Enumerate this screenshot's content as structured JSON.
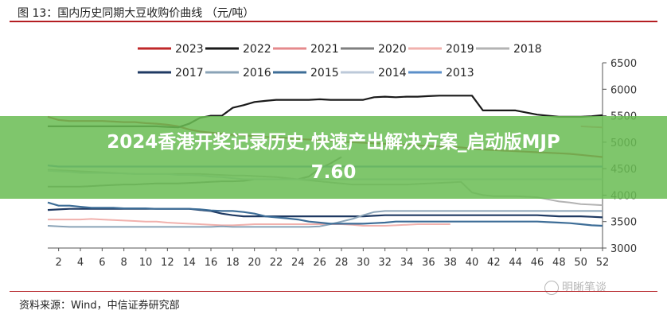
{
  "figure_title": "图 13：国内历史同期大豆收购价曲线 （元/吨）",
  "source_text": "资料来源：Wind，中信证券研究部",
  "watermark_text": "明晰笔谈",
  "banner": {
    "line1": "2024香港开奖记录历史,快速产出解决方案_启动版MJP",
    "line2": "7.60",
    "color": "#6abd54"
  },
  "chart_data": {
    "type": "line",
    "title": "",
    "xlabel": "",
    "ylabel": "",
    "x": [
      1,
      2,
      3,
      4,
      5,
      6,
      7,
      8,
      9,
      10,
      11,
      12,
      13,
      14,
      15,
      16,
      17,
      18,
      19,
      20,
      21,
      22,
      23,
      24,
      25,
      26,
      27,
      28,
      29,
      30,
      31,
      32,
      33,
      34,
      35,
      36,
      37,
      38,
      39,
      40,
      41,
      42,
      43,
      44,
      45,
      46,
      47,
      48,
      49,
      50,
      51,
      52
    ],
    "xticks": [
      2,
      4,
      6,
      8,
      10,
      12,
      14,
      16,
      18,
      20,
      22,
      24,
      26,
      28,
      30,
      32,
      34,
      36,
      38,
      40,
      42,
      44,
      46,
      48,
      50,
      52
    ],
    "xlim": [
      1,
      52
    ],
    "ylim": [
      3000,
      6500
    ],
    "yticks": [
      3000,
      3500,
      4000,
      4500,
      5000,
      5500,
      6000,
      6500
    ],
    "y_axis_side": "right",
    "grid": false,
    "legend_position": "top",
    "series": [
      {
        "name": "2023",
        "color": "#c0282a",
        "width": 2.2,
        "values": [
          5480,
          5420,
          5400,
          5400,
          5400,
          5400,
          5390,
          5380,
          5380,
          5360,
          5350,
          5330,
          5300,
          5240,
          5200,
          5180,
          5160,
          5140,
          5130,
          5110,
          5100,
          5090,
          5080,
          5060,
          5050,
          5040,
          5030,
          5010,
          5000,
          4990,
          4980,
          4970,
          4960,
          4950,
          4940,
          4930,
          4920,
          4910,
          4900,
          4880,
          4860,
          4850,
          4840,
          4830,
          4820,
          4810,
          4800,
          4790,
          4780,
          4760,
          4740,
          4720
        ]
      },
      {
        "name": "2022",
        "color": "#1a1a1a",
        "width": 2.2,
        "values": [
          5300,
          5300,
          5300,
          5300,
          5300,
          5300,
          5300,
          5300,
          5300,
          5300,
          5300,
          5290,
          5280,
          5350,
          5460,
          5500,
          5500,
          5650,
          5700,
          5760,
          5780,
          5800,
          5800,
          5800,
          5800,
          5810,
          5800,
          5800,
          5800,
          5800,
          5850,
          5860,
          5850,
          5860,
          5860,
          5870,
          5880,
          5880,
          5880,
          5880,
          5600,
          5600,
          5600,
          5600,
          5560,
          5520,
          5500,
          5480,
          5480,
          5480,
          5490,
          5510
        ]
      },
      {
        "name": "2021",
        "color": "#e58a8c",
        "width": 2.0,
        "values": [
          null,
          null,
          null,
          null,
          null,
          null,
          null,
          null,
          null,
          null,
          null,
          null,
          null,
          null,
          null,
          null,
          null,
          null,
          null,
          null,
          null,
          null,
          null,
          null,
          null,
          null,
          null,
          null,
          null,
          null,
          null,
          null,
          null,
          null,
          null,
          null,
          null,
          null,
          null,
          null,
          null,
          null,
          null,
          null,
          null,
          null,
          null,
          null,
          null,
          5300,
          5290,
          5280
        ]
      },
      {
        "name": "2020",
        "color": "#7f7f7f",
        "width": 2.0,
        "values": [
          4160,
          4160,
          4160,
          4160,
          4170,
          4180,
          4190,
          4200,
          4200,
          4210,
          4220,
          4220,
          4220,
          4230,
          4240,
          4250,
          4260,
          4260,
          4270,
          4300,
          4300,
          4300,
          4300,
          4300,
          4350,
          4500,
          4600,
          4720,
          null,
          null,
          null,
          null,
          null,
          null,
          null,
          null,
          null,
          null,
          null,
          null,
          null,
          null,
          null,
          null,
          null,
          null,
          null,
          null,
          null,
          null,
          null,
          null
        ]
      },
      {
        "name": "2019",
        "color": "#f1b1ad",
        "width": 2.0,
        "values": [
          3540,
          3540,
          3540,
          3540,
          3550,
          3540,
          3530,
          3520,
          3510,
          3500,
          3500,
          3480,
          3470,
          3460,
          3450,
          3440,
          3430,
          3430,
          3440,
          3450,
          3450,
          3450,
          3450,
          3450,
          3450,
          3450,
          3450,
          3450,
          3440,
          3420,
          3420,
          3420,
          3430,
          3440,
          3450,
          3450,
          3450,
          3450,
          null,
          null,
          null,
          null,
          null,
          null,
          null,
          null,
          null,
          null,
          null,
          null,
          null,
          null
        ]
      },
      {
        "name": "2018",
        "color": "#b3b3b3",
        "width": 2.0,
        "values": [
          4480,
          4470,
          4460,
          4450,
          4440,
          4430,
          4420,
          4410,
          4400,
          4400,
          4400,
          4400,
          4400,
          4400,
          4400,
          4390,
          4380,
          4370,
          4370,
          4360,
          4350,
          4340,
          4320,
          4300,
          4280,
          4260,
          4240,
          4220,
          4200,
          4200,
          4200,
          4200,
          4200,
          4200,
          4210,
          4220,
          4230,
          4240,
          4250,
          4050,
          4000,
          3980,
          3980,
          3980,
          3970,
          3960,
          3920,
          3880,
          3860,
          3830,
          3820,
          3810
        ]
      },
      {
        "name": "2017",
        "color": "#1f3a63",
        "width": 2.2,
        "values": [
          3720,
          3730,
          3740,
          3740,
          3740,
          3740,
          3740,
          3740,
          3740,
          3740,
          3740,
          3740,
          3740,
          3740,
          3720,
          3700,
          3650,
          3620,
          3600,
          3600,
          3600,
          3600,
          3600,
          3600,
          3600,
          3600,
          3600,
          3600,
          3600,
          3600,
          3610,
          3620,
          3620,
          3620,
          3620,
          3620,
          3620,
          3620,
          3620,
          3620,
          3620,
          3620,
          3620,
          3620,
          3620,
          3620,
          3610,
          3600,
          3600,
          3600,
          3590,
          3580
        ]
      },
      {
        "name": "2016",
        "color": "#8aa3b7",
        "width": 2.0,
        "values": [
          3420,
          3410,
          3400,
          3400,
          3400,
          3400,
          3400,
          3400,
          3400,
          3400,
          3400,
          3400,
          3400,
          3400,
          3400,
          3400,
          3410,
          3400,
          3400,
          3400,
          3400,
          3400,
          3400,
          3400,
          3400,
          3410,
          3450,
          3500,
          3550,
          3620,
          3680,
          3700,
          3700,
          3700,
          3700,
          3700,
          3700,
          3700,
          3700,
          3700,
          3700,
          3700,
          3700,
          3700,
          3700,
          3700,
          3700,
          3700,
          3700,
          3700,
          3700,
          3700
        ]
      },
      {
        "name": "2015",
        "color": "#3d6d97",
        "width": 2.2,
        "values": [
          3860,
          3800,
          3800,
          3780,
          3760,
          3760,
          3760,
          3750,
          3750,
          3750,
          3740,
          3740,
          3740,
          3740,
          3730,
          3710,
          3700,
          3700,
          3680,
          3650,
          3600,
          3580,
          3560,
          3540,
          3500,
          3480,
          3460,
          3460,
          3460,
          3460,
          3470,
          3480,
          3500,
          3500,
          3500,
          3500,
          3500,
          3500,
          3500,
          3500,
          3500,
          3500,
          3500,
          3500,
          3500,
          3500,
          3490,
          3480,
          3470,
          3450,
          3430,
          3420
        ]
      },
      {
        "name": "2014",
        "color": "#bcc9d9",
        "width": 2.0,
        "values": [
          4460,
          4450,
          4440,
          4420,
          4420,
          4420,
          4410,
          4410,
          4400,
          4400,
          4400,
          4400,
          4380,
          4380,
          4370,
          4350,
          4340,
          4320,
          4300,
          4300,
          4300,
          4300,
          4300,
          4300,
          4300,
          4300,
          4300,
          4300,
          4300,
          4300,
          4300,
          4300,
          4300,
          4300,
          4300,
          4300,
          4300,
          4300,
          4300,
          4300,
          4300,
          4300,
          4300,
          4300,
          4300,
          4300,
          4300,
          4300,
          4300,
          4300,
          4300,
          4300
        ]
      },
      {
        "name": "2013",
        "color": "#5b8fc9",
        "width": 2.2,
        "values": [
          4560,
          4540,
          4540,
          4540,
          4540,
          4540,
          4540,
          4540,
          4540,
          4540,
          4540,
          4540,
          4540,
          4540,
          4540,
          4540,
          4540,
          4540,
          4540,
          4540,
          4540,
          4540,
          4540,
          4540,
          4540,
          4540,
          4540,
          4540,
          4540,
          4540,
          4540,
          4540,
          4540,
          4540,
          4540,
          4540,
          4540,
          4540,
          4540,
          4540,
          4540,
          4540,
          4540,
          4540,
          4540,
          4540,
          4540,
          4540,
          4540,
          4540,
          4540,
          4540
        ]
      }
    ]
  }
}
